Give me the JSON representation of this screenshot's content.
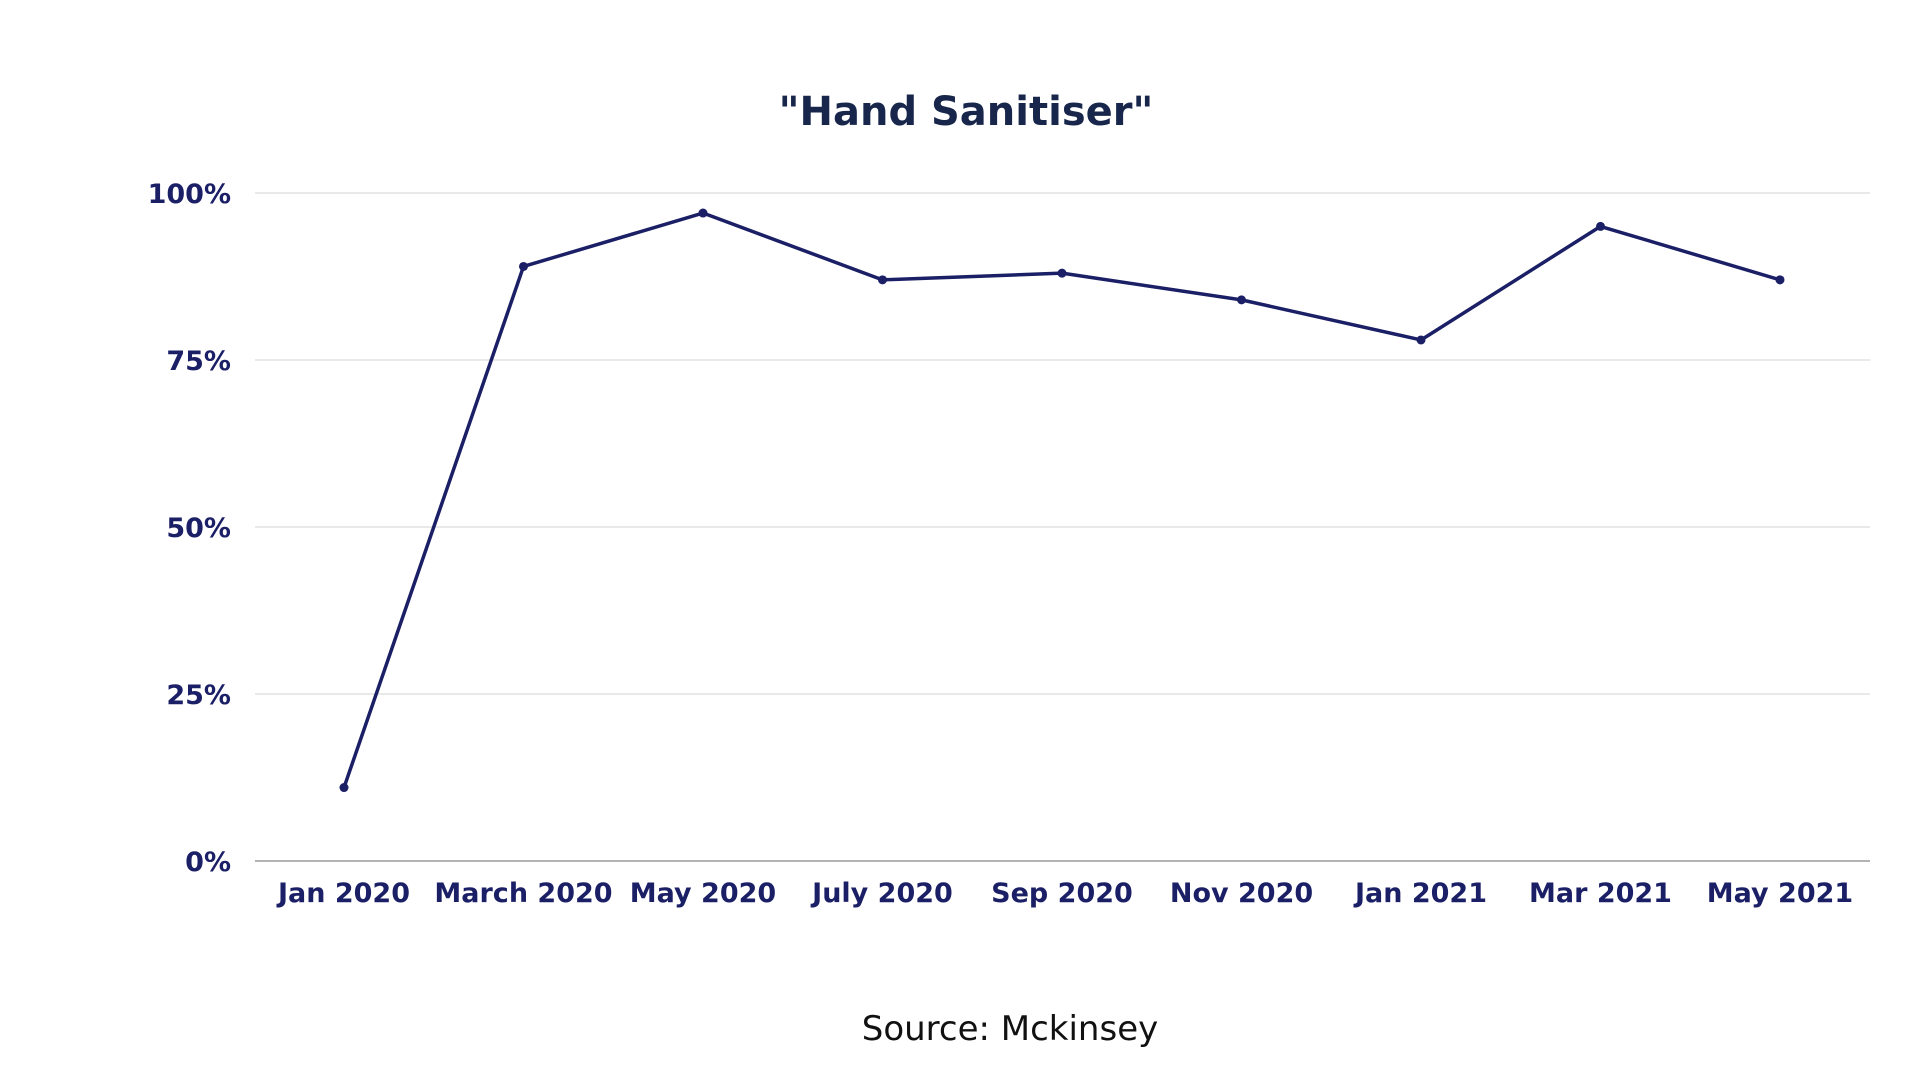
{
  "chart_data": {
    "type": "line",
    "title": "\"Hand Sanitiser\"",
    "categories": [
      "Jan 2020",
      "March 2020",
      "May 2020",
      "July 2020",
      "Sep 2020",
      "Nov 2020",
      "Jan 2021",
      "Mar 2021",
      "May 2021"
    ],
    "series": [
      {
        "values": [
          11,
          89,
          97,
          87,
          88,
          84,
          78,
          95,
          87
        ]
      }
    ],
    "y_ticks": [
      0,
      25,
      50,
      75,
      100
    ],
    "y_tick_labels": [
      "0%",
      "25%",
      "50%",
      "75%",
      "100%"
    ],
    "ylim": [
      0,
      100
    ],
    "xlabel": "",
    "ylabel": "",
    "grid": true,
    "source_text": "Source: Mckinsey",
    "colors": {
      "line": "#1b1f66",
      "title": "#17264a",
      "ticks": "#1b1f66"
    }
  }
}
